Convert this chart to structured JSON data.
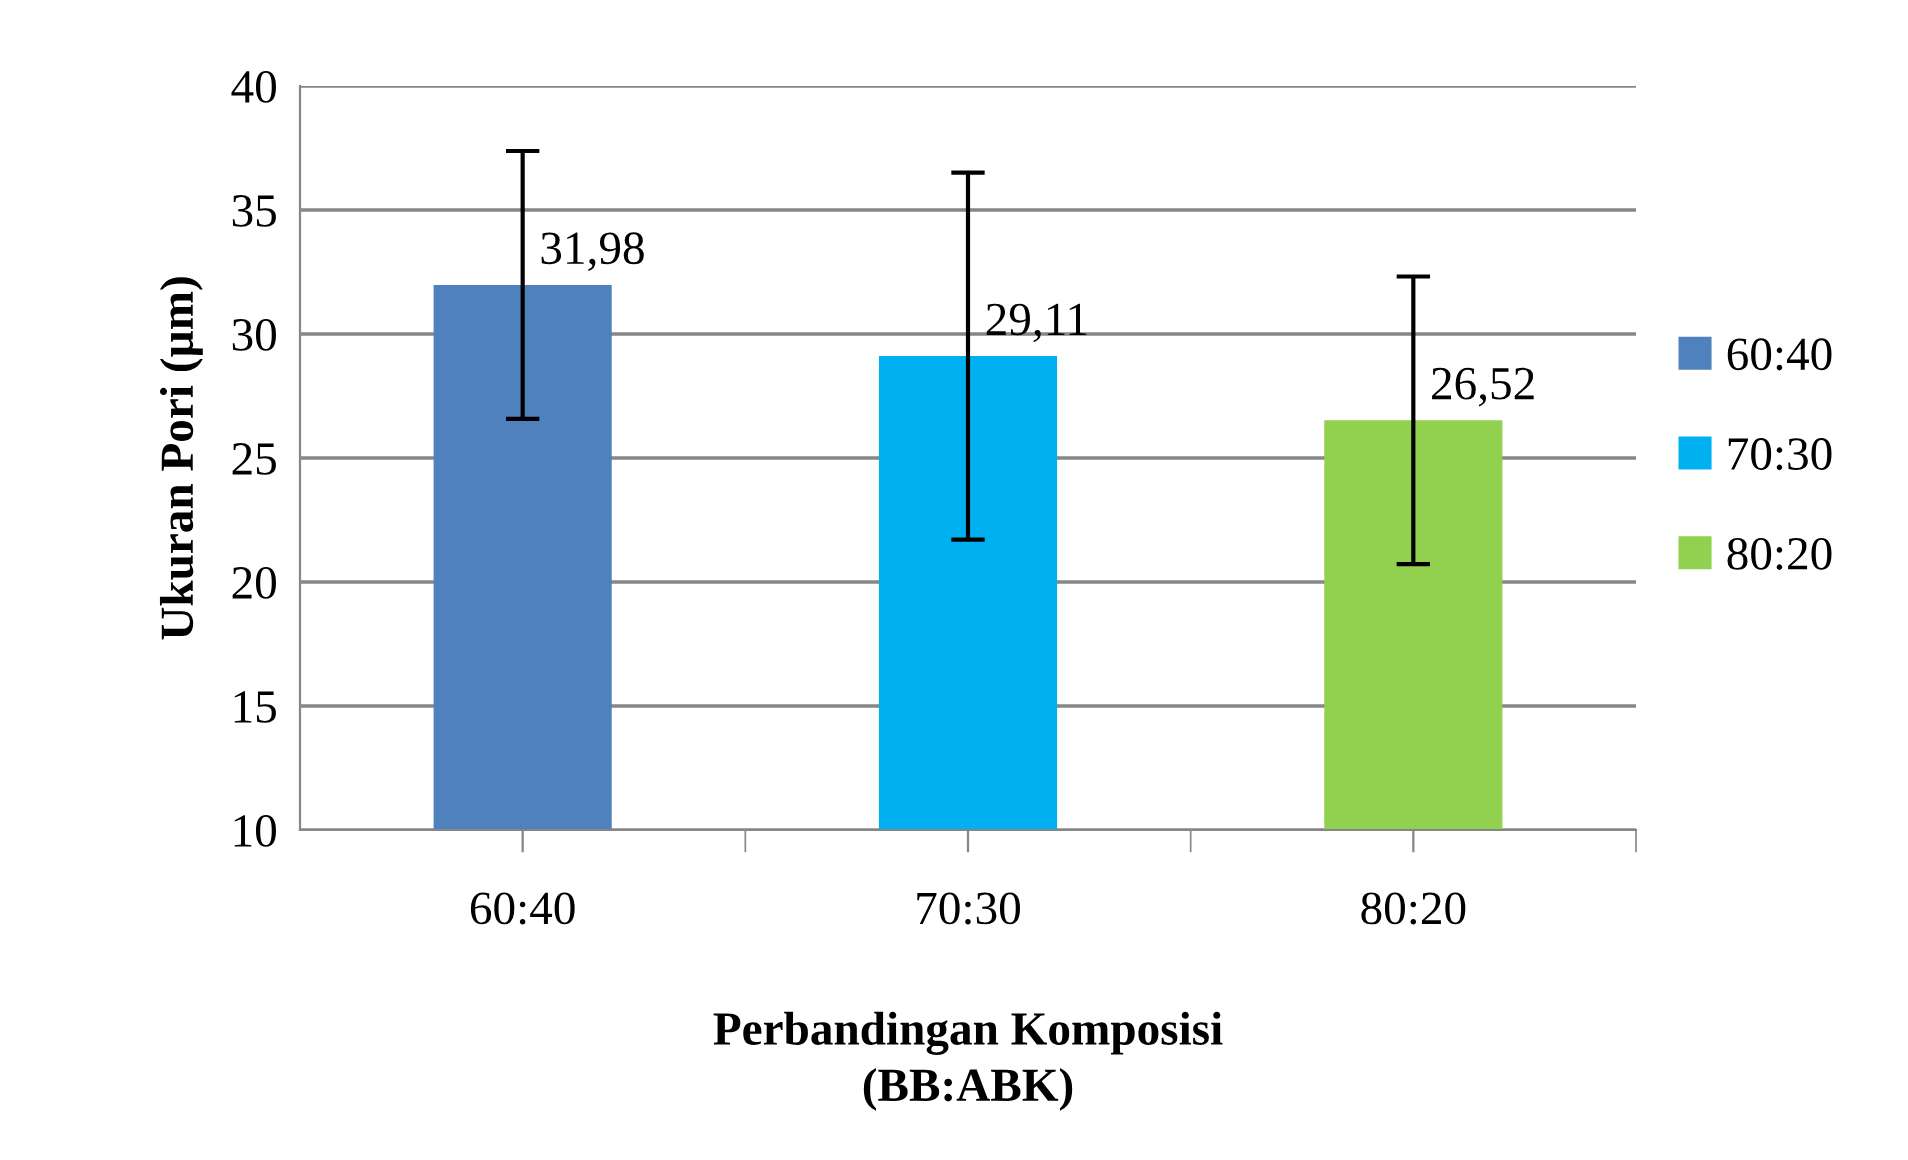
{
  "chart_data": {
    "type": "bar",
    "xlabel": "Perbandingan Komposisi\n(BB:ABK)",
    "ylabel": "Ukuran Pori (µm)",
    "categories": [
      "60:40",
      "70:30",
      "80:20"
    ],
    "stacked": true,
    "series": [
      {
        "name": "60:40",
        "color": "#4f81bd",
        "values": [
          31.98,
          null,
          null
        ],
        "value_labels": [
          "31,98",
          null,
          null
        ],
        "errors": [
          5.4,
          null,
          null
        ]
      },
      {
        "name": "70:30",
        "color": "#00b0f0",
        "values": [
          null,
          29.11,
          null
        ],
        "value_labels": [
          null,
          "29,11",
          null
        ],
        "errors": [
          null,
          7.4,
          null
        ]
      },
      {
        "name": "80:20",
        "color": "#92d050",
        "values": [
          null,
          null,
          26.52
        ],
        "value_labels": [
          null,
          null,
          "26,52"
        ],
        "errors": [
          null,
          null,
          5.8
        ]
      }
    ],
    "ylim": [
      10,
      40
    ],
    "yticks": [
      10,
      15,
      20,
      25,
      30,
      35,
      40
    ],
    "grid": "y",
    "legend": "right"
  }
}
